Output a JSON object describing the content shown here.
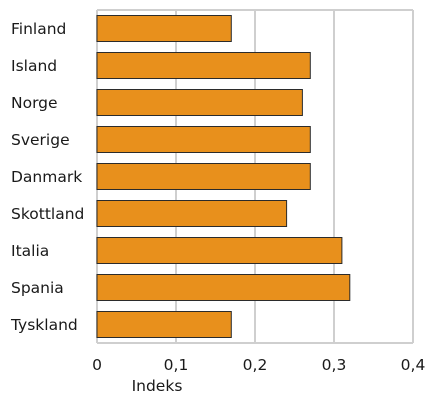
{
  "chart_data": {
    "type": "bar",
    "orientation": "horizontal",
    "categories": [
      "Finland",
      "Island",
      "Norge",
      "Sverige",
      "Danmark",
      "Skottland",
      "Italia",
      "Spania",
      "Tyskland"
    ],
    "values": [
      0.17,
      0.27,
      0.26,
      0.27,
      0.27,
      0.24,
      0.31,
      0.32,
      0.17
    ],
    "xlabel": "Indeks",
    "ylabel": "",
    "title": "",
    "xlim": [
      0,
      0.4
    ],
    "xticks": [
      0,
      0.1,
      0.2,
      0.3,
      0.4
    ],
    "xtick_labels": [
      "0",
      "0,1",
      "0,2",
      "0,3",
      "0,4"
    ],
    "grid": "vertical",
    "bar_color": "#E8901C",
    "grid_color": "#cfcfcf"
  }
}
